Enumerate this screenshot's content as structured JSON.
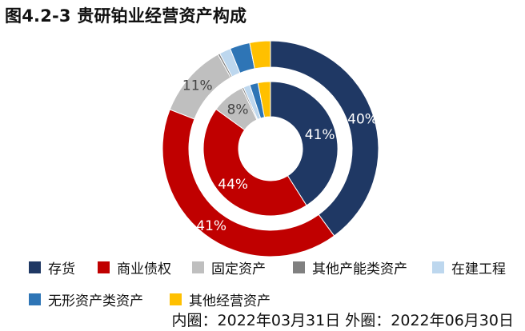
{
  "title": "图4.2-3 贵研铂业经营资产构成",
  "footer": "内圈：2022年03月31日 外圈：2022年06月30日",
  "chart_data": {
    "type": "donut",
    "title": "图4.2-3 贵研铂业经营资产构成",
    "categories": [
      "存货",
      "商业债权",
      "固定资产",
      "其他产能类资产",
      "在建工程",
      "无形资产类资产",
      "其他经营资产"
    ],
    "colors": [
      "#1f3864",
      "#c00000",
      "#bfbfbf",
      "#808080",
      "#bdd7ee",
      "#2e75b6",
      "#ffc000"
    ],
    "series": [
      {
        "name": "外圈：2022年06月30日",
        "ring": "outer",
        "values": [
          40,
          41,
          11,
          0.3,
          1.7,
          3,
          3.1
        ],
        "labels": [
          "40%",
          "41%",
          "11%",
          "",
          "",
          "",
          ""
        ]
      },
      {
        "name": "内圈：2022年03月31日",
        "ring": "inner",
        "values": [
          41,
          44,
          8,
          0.4,
          1.6,
          2,
          3
        ],
        "labels": [
          "41%",
          "44%",
          "8%",
          "",
          "",
          "",
          ""
        ]
      }
    ],
    "legend_position": "bottom"
  }
}
